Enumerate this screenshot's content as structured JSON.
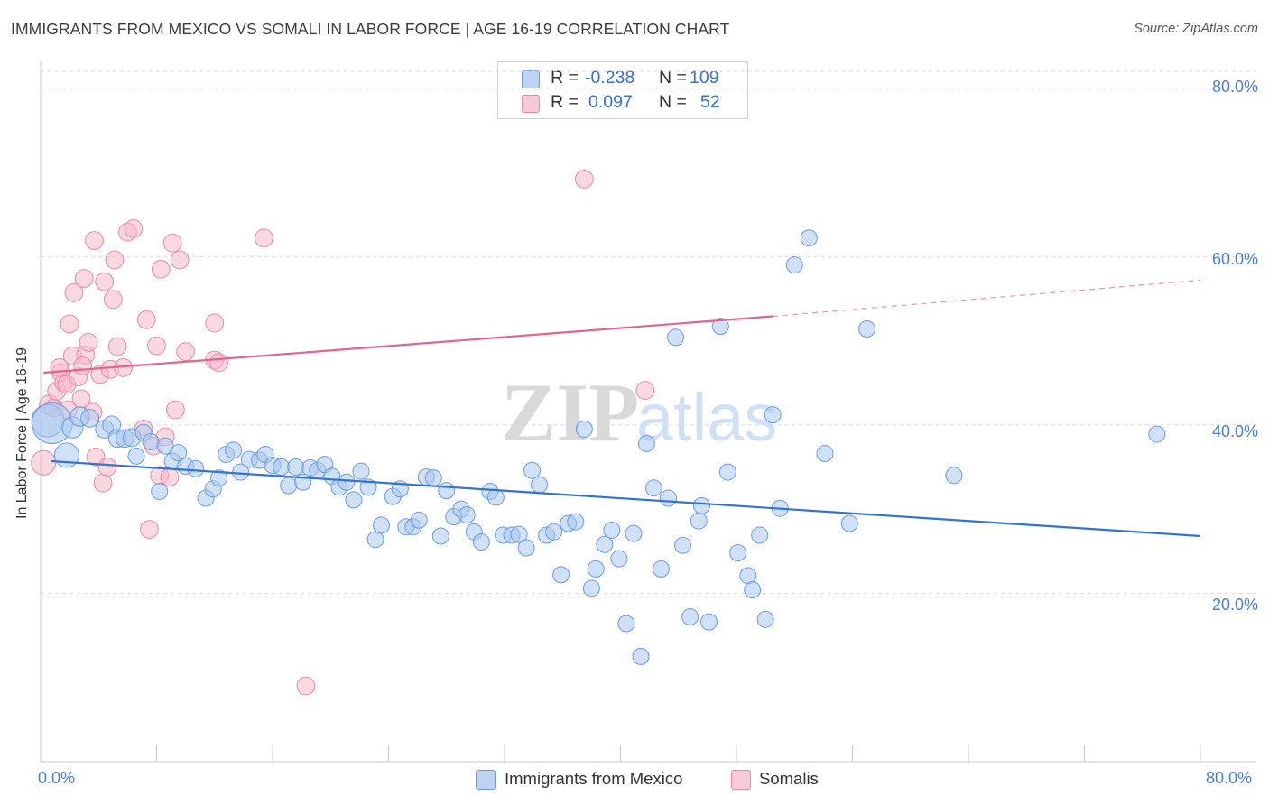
{
  "header": {
    "title": "IMMIGRANTS FROM MEXICO VS SOMALI IN LABOR FORCE | AGE 16-19 CORRELATION CHART",
    "source": "Source: ZipAtlas.com"
  },
  "watermark": {
    "zip": "ZIP",
    "atlas": "atlas"
  },
  "colors": {
    "blue_fill": "#a9c8f0",
    "blue_stroke": "#6a9be0",
    "blue_line": "#2f74d0",
    "pink_fill": "#f5b8ca",
    "pink_stroke": "#e68aa5",
    "pink_line": "#e0668e",
    "tick_text": "#4a7fd0",
    "grid": "#d8d8d8"
  },
  "legend": {
    "r_label": "R =",
    "n_label": "N =",
    "entries": [
      {
        "r": "-0.238",
        "n": "109"
      },
      {
        "r": "0.097",
        "n": "52"
      }
    ]
  },
  "chart_data": {
    "type": "scatter",
    "title": "IMMIGRANTS FROM MEXICO VS SOMALI IN LABOR FORCE | AGE 16-19 CORRELATION CHART",
    "xlabel": "",
    "ylabel": "In Labor Force | Age 16-19",
    "xlim": [
      0,
      80
    ],
    "ylim": [
      0,
      82
    ],
    "x_tick_labels": [
      "0.0%",
      "80.0%"
    ],
    "y_ticks": [
      20,
      40,
      60,
      80
    ],
    "y_tick_labels": [
      "20.0%",
      "40.0%",
      "60.0%",
      "80.0%"
    ],
    "grid": true,
    "legend_position": "top-center",
    "series": [
      {
        "name": "Immigrants from Mexico",
        "r": -0.238,
        "n": 109,
        "trend": {
          "x": [
            0.7,
            80
          ],
          "y": [
            35.7,
            26.8
          ],
          "style": "solid"
        },
        "points": [
          [
            0.5,
            40.5,
            2
          ],
          [
            0.8,
            40.2,
            2.5
          ],
          [
            2.2,
            39.7,
            1.3
          ],
          [
            1.8,
            36.4,
            1.5
          ],
          [
            2.7,
            41.0,
            1.2
          ],
          [
            3.4,
            40.8,
            1.1
          ],
          [
            4.4,
            39.5,
            1.1
          ],
          [
            4.9,
            40.0,
            1.1
          ],
          [
            5.3,
            38.4,
            1.1
          ],
          [
            5.8,
            38.4,
            1.1
          ],
          [
            6.3,
            38.5,
            1.1
          ],
          [
            6.6,
            36.3,
            1.0
          ],
          [
            7.1,
            39.1,
            1.0
          ],
          [
            7.6,
            38.0,
            1.0
          ],
          [
            8.2,
            32.1,
            1.0
          ],
          [
            8.6,
            37.5,
            1.0
          ],
          [
            9.1,
            35.7,
            1.0
          ],
          [
            9.5,
            36.7,
            1.0
          ],
          [
            10.0,
            35.1,
            1.0
          ],
          [
            10.7,
            34.8,
            1.0
          ],
          [
            11.4,
            31.3,
            1.0
          ],
          [
            11.9,
            32.4,
            1.0
          ],
          [
            12.3,
            33.7,
            1.0
          ],
          [
            12.8,
            36.5,
            1.0
          ],
          [
            13.3,
            37.0,
            1.0
          ],
          [
            13.8,
            34.4,
            1.0
          ],
          [
            14.4,
            35.9,
            1.0
          ],
          [
            15.1,
            35.8,
            1.0
          ],
          [
            15.5,
            36.5,
            1.0
          ],
          [
            16.0,
            35.2,
            1.0
          ],
          [
            16.6,
            35.0,
            1.0
          ],
          [
            17.1,
            32.8,
            1.0
          ],
          [
            17.6,
            35.0,
            1.0
          ],
          [
            18.1,
            33.2,
            1.0
          ],
          [
            18.6,
            34.9,
            1.0
          ],
          [
            19.1,
            34.6,
            1.0
          ],
          [
            19.6,
            35.3,
            1.0
          ],
          [
            20.1,
            33.9,
            1.0
          ],
          [
            20.6,
            32.6,
            1.0
          ],
          [
            21.1,
            33.2,
            1.0
          ],
          [
            21.6,
            31.1,
            1.0
          ],
          [
            22.1,
            34.5,
            1.0
          ],
          [
            22.6,
            32.6,
            1.0
          ],
          [
            23.1,
            26.4,
            1.0
          ],
          [
            23.5,
            28.1,
            1.0
          ],
          [
            24.3,
            31.5,
            1.0
          ],
          [
            24.8,
            32.4,
            1.0
          ],
          [
            25.2,
            27.9,
            1.0
          ],
          [
            25.7,
            27.9,
            1.0
          ],
          [
            26.1,
            28.7,
            1.0
          ],
          [
            26.6,
            33.8,
            1.0
          ],
          [
            27.1,
            33.7,
            1.0
          ],
          [
            27.6,
            26.8,
            1.0
          ],
          [
            28.0,
            32.2,
            1.0
          ],
          [
            28.5,
            29.1,
            1.0
          ],
          [
            29.0,
            30.0,
            1.0
          ],
          [
            29.4,
            29.3,
            1.0
          ],
          [
            29.9,
            27.3,
            1.0
          ],
          [
            30.4,
            26.1,
            1.0
          ],
          [
            31.0,
            32.1,
            1.0
          ],
          [
            31.4,
            31.4,
            1.0
          ],
          [
            31.9,
            26.9,
            1.0
          ],
          [
            32.5,
            26.9,
            1.0
          ],
          [
            33.0,
            27.0,
            1.0
          ],
          [
            33.5,
            25.4,
            1.0
          ],
          [
            33.9,
            34.6,
            1.0
          ],
          [
            34.4,
            32.9,
            1.0
          ],
          [
            34.9,
            26.9,
            1.0
          ],
          [
            35.4,
            27.3,
            1.0
          ],
          [
            35.9,
            22.2,
            1.0
          ],
          [
            36.4,
            28.3,
            1.0
          ],
          [
            36.9,
            28.5,
            1.0
          ],
          [
            37.5,
            39.5,
            1.0
          ],
          [
            38.0,
            20.6,
            1.0
          ],
          [
            38.3,
            22.9,
            1.0
          ],
          [
            38.9,
            25.8,
            1.0
          ],
          [
            39.4,
            27.5,
            1.0
          ],
          [
            39.9,
            24.1,
            1.0
          ],
          [
            40.4,
            16.4,
            1.0
          ],
          [
            40.9,
            27.1,
            1.0
          ],
          [
            41.4,
            12.5,
            1.0
          ],
          [
            41.8,
            37.8,
            1.0
          ],
          [
            42.3,
            32.5,
            1.0
          ],
          [
            42.8,
            22.9,
            1.0
          ],
          [
            43.3,
            31.3,
            1.0
          ],
          [
            43.8,
            50.4,
            1.0
          ],
          [
            44.3,
            25.7,
            1.0
          ],
          [
            44.8,
            17.2,
            1.0
          ],
          [
            45.4,
            28.6,
            1.0
          ],
          [
            45.6,
            30.4,
            1.0
          ],
          [
            46.1,
            16.6,
            1.0
          ],
          [
            46.9,
            51.7,
            1.0
          ],
          [
            47.4,
            34.4,
            1.0
          ],
          [
            48.1,
            24.8,
            1.0
          ],
          [
            48.8,
            22.1,
            1.0
          ],
          [
            49.1,
            20.4,
            1.0
          ],
          [
            49.6,
            26.9,
            1.0
          ],
          [
            50.0,
            16.9,
            1.0
          ],
          [
            50.5,
            41.2,
            1.0
          ],
          [
            51.0,
            30.1,
            1.0
          ],
          [
            52.0,
            59.0,
            1.0
          ],
          [
            53.0,
            62.2,
            1.0
          ],
          [
            54.1,
            36.6,
            1.0
          ],
          [
            55.8,
            28.3,
            1.0
          ],
          [
            57.0,
            51.4,
            1.0
          ],
          [
            63.0,
            34.0,
            1.0
          ],
          [
            77.0,
            38.9,
            1.0
          ]
        ]
      },
      {
        "name": "Somalis",
        "r": 0.097,
        "n": 52,
        "trend": {
          "x": [
            0.2,
            50.5
          ],
          "y": [
            46.2,
            52.9
          ],
          "style": "solid",
          "dashed_to": [
            80,
            57.2
          ]
        },
        "points": [
          [
            0.2,
            35.5,
            1.5
          ],
          [
            0.6,
            42.4,
            1.2
          ],
          [
            0.9,
            42.0,
            1.1
          ],
          [
            1.1,
            44.0,
            1.1
          ],
          [
            1.4,
            46.2,
            1.1
          ],
          [
            1.6,
            45.0,
            1.1
          ],
          [
            1.8,
            44.8,
            1.1
          ],
          [
            1.9,
            41.8,
            1.1
          ],
          [
            2.0,
            52.0,
            1.1
          ],
          [
            2.2,
            48.2,
            1.1
          ],
          [
            2.3,
            55.7,
            1.1
          ],
          [
            2.6,
            45.7,
            1.1
          ],
          [
            2.8,
            43.1,
            1.1
          ],
          [
            3.0,
            57.4,
            1.1
          ],
          [
            3.1,
            48.3,
            1.1
          ],
          [
            3.3,
            49.8,
            1.1
          ],
          [
            3.6,
            41.5,
            1.1
          ],
          [
            3.7,
            61.9,
            1.1
          ],
          [
            3.8,
            36.2,
            1.1
          ],
          [
            4.1,
            46.0,
            1.1
          ],
          [
            4.3,
            33.1,
            1.1
          ],
          [
            4.4,
            57.0,
            1.1
          ],
          [
            4.6,
            35.0,
            1.1
          ],
          [
            4.8,
            46.6,
            1.1
          ],
          [
            5.0,
            54.9,
            1.1
          ],
          [
            5.1,
            59.6,
            1.1
          ],
          [
            5.3,
            49.3,
            1.1
          ],
          [
            5.7,
            46.8,
            1.1
          ],
          [
            6.0,
            62.9,
            1.1
          ],
          [
            6.4,
            63.3,
            1.1
          ],
          [
            7.1,
            39.5,
            1.1
          ],
          [
            7.3,
            52.5,
            1.1
          ],
          [
            7.5,
            27.6,
            1.1
          ],
          [
            7.8,
            37.5,
            1.1
          ],
          [
            8.0,
            49.4,
            1.1
          ],
          [
            8.2,
            34.0,
            1.1
          ],
          [
            8.3,
            58.5,
            1.1
          ],
          [
            8.6,
            38.6,
            1.1
          ],
          [
            8.9,
            33.8,
            1.1
          ],
          [
            9.1,
            61.6,
            1.1
          ],
          [
            9.3,
            41.8,
            1.1
          ],
          [
            9.6,
            59.6,
            1.1
          ],
          [
            10.0,
            48.7,
            1.1
          ],
          [
            12.0,
            52.1,
            1.1
          ],
          [
            12.0,
            47.7,
            1.1
          ],
          [
            12.3,
            47.4,
            1.1
          ],
          [
            15.4,
            62.2,
            1.1
          ],
          [
            18.3,
            9.0,
            1.1
          ],
          [
            37.5,
            69.2,
            1.1
          ],
          [
            41.7,
            44.1,
            1.1
          ],
          [
            1.3,
            46.8,
            1.1
          ],
          [
            2.9,
            47.0,
            1.1
          ]
        ]
      }
    ]
  }
}
